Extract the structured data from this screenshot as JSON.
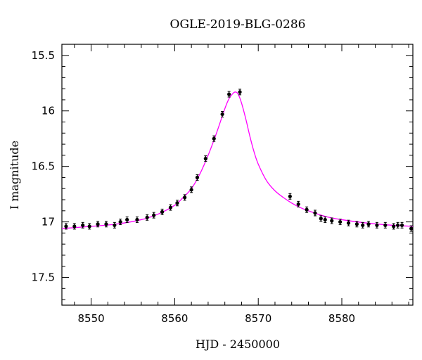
{
  "chart_data": {
    "type": "scatter",
    "title": "OGLE-2019-BLG-0286",
    "xlabel": "HJD - 2450000",
    "ylabel": "I magnitude",
    "xlim": [
      8546.5,
      8588.5
    ],
    "ylim": [
      17.75,
      15.4
    ],
    "y_inverted": true,
    "grid": false,
    "xticks": [
      8550,
      8560,
      8570,
      8580
    ],
    "xtick_labels": [
      "8550",
      "8560",
      "8570",
      "8580"
    ],
    "yticks": [
      15.5,
      16,
      16.5,
      17,
      17.5
    ],
    "ytick_labels": [
      "15.5",
      "16",
      "16.5",
      "17",
      "17.5"
    ],
    "series": [
      {
        "kind": "points",
        "color": "#000000",
        "x": [
          8547.0,
          8548.0,
          8549.0,
          8549.8,
          8550.8,
          8551.8,
          8552.8,
          8553.5,
          8554.3,
          8555.5,
          8556.7,
          8557.5,
          8558.5,
          8559.5,
          8560.3,
          8561.2,
          8562.0,
          8562.7,
          8563.7,
          8564.7,
          8565.7,
          8566.5,
          8567.8,
          8573.8,
          8574.8,
          8575.8,
          8576.8,
          8577.5,
          8578.0,
          8578.8,
          8579.8,
          8580.8,
          8581.8,
          8582.5,
          8583.2,
          8584.2,
          8585.2,
          8586.2,
          8586.7,
          8587.2,
          8588.3
        ],
        "y": [
          17.04,
          17.04,
          17.03,
          17.04,
          17.02,
          17.02,
          17.03,
          17.0,
          16.98,
          16.98,
          16.96,
          16.94,
          16.91,
          16.87,
          16.83,
          16.78,
          16.71,
          16.6,
          16.43,
          16.25,
          16.03,
          15.85,
          15.83,
          16.77,
          16.84,
          16.89,
          16.92,
          16.97,
          16.98,
          16.99,
          17.0,
          17.01,
          17.02,
          17.03,
          17.02,
          17.03,
          17.03,
          17.04,
          17.03,
          17.03,
          17.06
        ]
      },
      {
        "kind": "model",
        "color": "#ff00ff",
        "x": [
          8546.5,
          8550,
          8553,
          8556,
          8558,
          8560,
          8561,
          8562,
          8563,
          8564,
          8565,
          8566,
          8566.5,
          8567,
          8567.3,
          8567.6,
          8568,
          8568.5,
          8569,
          8569.5,
          8570,
          8571,
          8572,
          8573,
          8574,
          8575,
          8576,
          8578,
          8580,
          8583,
          8586,
          8588.5
        ],
        "y": [
          17.06,
          17.04,
          17.02,
          16.98,
          16.93,
          16.85,
          16.78,
          16.7,
          16.57,
          16.4,
          16.2,
          15.98,
          15.89,
          15.84,
          15.83,
          15.85,
          15.93,
          16.07,
          16.23,
          16.37,
          16.48,
          16.63,
          16.72,
          16.78,
          16.83,
          16.87,
          16.9,
          16.95,
          16.98,
          17.01,
          17.03,
          17.04
        ]
      }
    ]
  }
}
